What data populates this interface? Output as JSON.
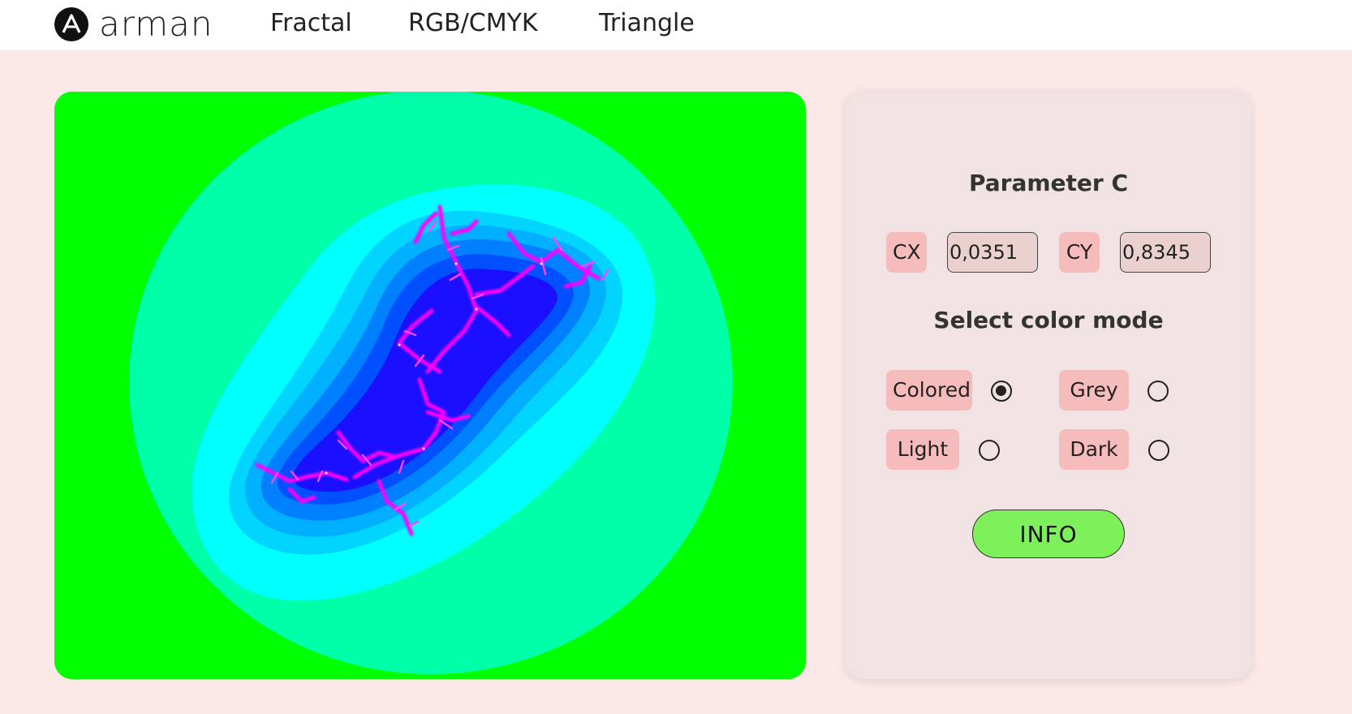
{
  "header": {
    "brand": "arman",
    "nav": [
      "Fractal",
      "RGB/CMYK",
      "Triangle"
    ]
  },
  "parameter": {
    "title": "Parameter C",
    "cx_label": "CX",
    "cx_value": "0,0351",
    "cy_label": "CY",
    "cy_value": "0,8345"
  },
  "color_mode": {
    "title": "Select color mode",
    "options": [
      {
        "label": "Colored",
        "checked": true
      },
      {
        "label": "Grey",
        "checked": false
      },
      {
        "label": "Light",
        "checked": false
      },
      {
        "label": "Dark",
        "checked": false
      }
    ]
  },
  "info_button": "INFO",
  "colors": {
    "background": "#fde8e8",
    "panel": "#f1e3e3",
    "tag": "#f6bcbc",
    "info": "#7ef15a",
    "fractal_outer": "#00ff00",
    "fractal_ring": "#00ffa8",
    "fractal_cyan": "#00ffff",
    "fractal_core": "#ff00ff"
  },
  "icons": {
    "logo": "arman-logo-icon"
  }
}
